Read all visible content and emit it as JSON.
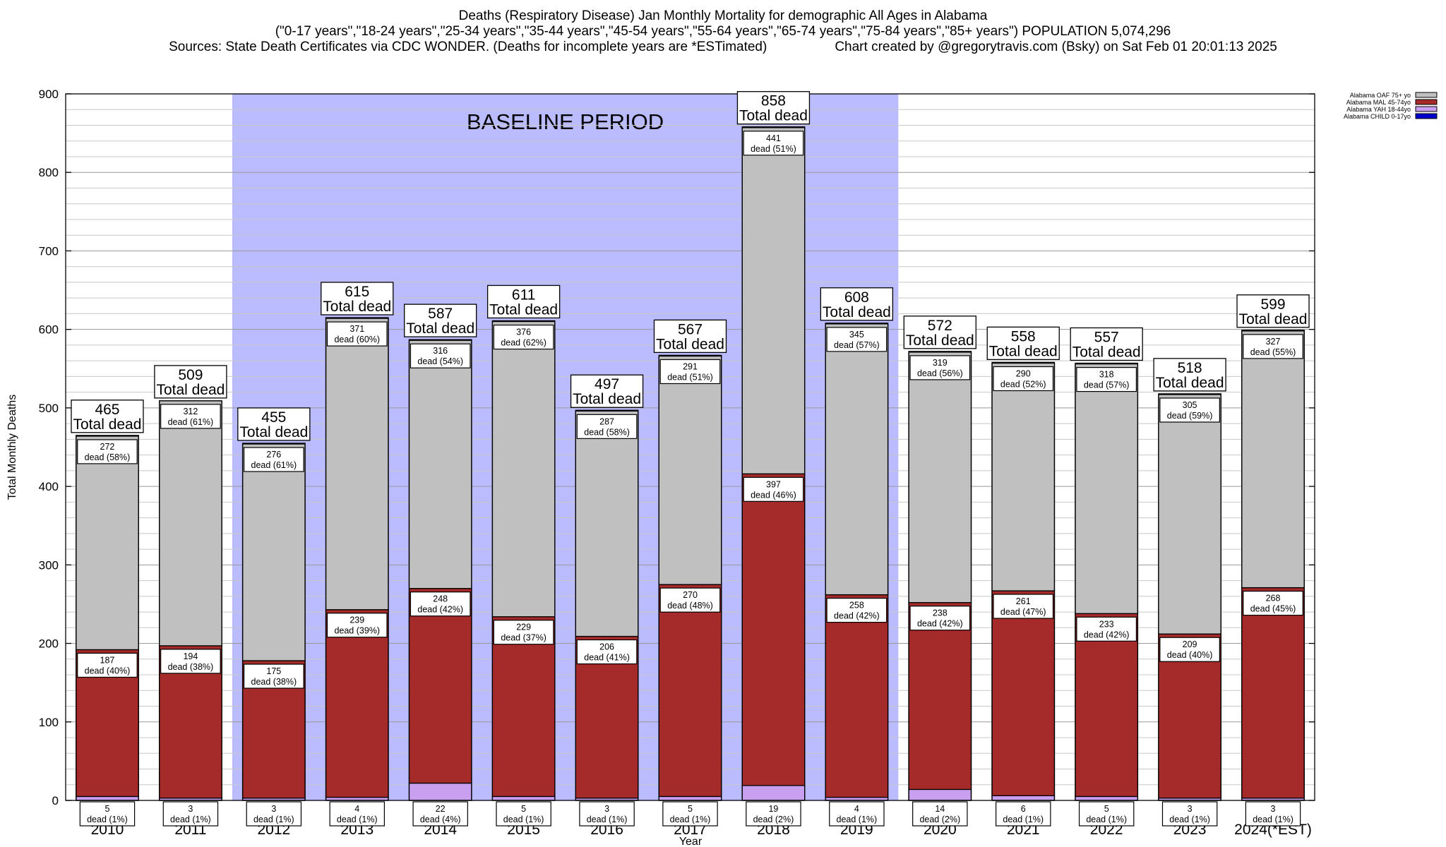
{
  "title_lines": [
    "Deaths (Respiratory Disease) Jan Monthly Mortality for demographic All Ages in Alabama",
    "(\"0-17 years\",\"18-24 years\",\"25-34 years\",\"35-44 years\",\"45-54 years\",\"55-64 years\",\"65-74 years\",\"75-84 years\",\"85+ years\") POPULATION 5,074,296"
  ],
  "sources_text": "Sources: State Death Certificates via CDC WONDER. (Deaths for incomplete years are *ESTimated)",
  "credit_text": "Chart created by @gregorytravis.com (Bsky) on Sat Feb 01 20:01:13 2025",
  "baseline_label": "BASELINE PERIOD",
  "colors": {
    "baseline_band": "#bbbbff",
    "oaf": "#c0c0c0",
    "mal": "#a52a2a",
    "yah": "#c9a0f0",
    "child": "#0000cc"
  },
  "chart_data": {
    "type": "bar",
    "stacked": true,
    "xlabel": "Year",
    "ylabel": "Total Monthly Deaths",
    "ylim": [
      0,
      900
    ],
    "yticks": [
      0,
      100,
      200,
      300,
      400,
      500,
      600,
      700,
      800,
      900
    ],
    "grid": true,
    "legend_position": "top-right",
    "categories": [
      "2010",
      "2011",
      "2012",
      "2013",
      "2014",
      "2015",
      "2016",
      "2017",
      "2018",
      "2019",
      "2020",
      "2021",
      "2022",
      "2023",
      "2024(*EST)"
    ],
    "baseline_period": [
      "2012",
      "2019"
    ],
    "series": [
      {
        "name": "Alabama CHILD 0-17yo",
        "key": "child",
        "values": [
          0,
          0,
          0,
          0,
          0,
          0,
          0,
          0,
          0,
          0,
          0,
          0,
          0,
          0,
          0
        ]
      },
      {
        "name": "Alabama YAH 18-44yo",
        "key": "yah",
        "values": [
          5,
          3,
          3,
          4,
          22,
          5,
          3,
          5,
          19,
          4,
          14,
          6,
          5,
          3,
          3
        ],
        "labels": [
          "dead (1%)",
          "dead (1%)",
          "dead (1%)",
          "dead (1%)",
          "dead (4%)",
          "dead (1%)",
          "dead (1%)",
          "dead (1%)",
          "dead (2%)",
          "dead (1%)",
          "dead (2%)",
          "dead (1%)",
          "dead (1%)",
          "dead (1%)",
          "dead (1%)"
        ]
      },
      {
        "name": "Alabama MAL 45-74yo",
        "key": "mal",
        "values": [
          187,
          194,
          175,
          239,
          248,
          229,
          206,
          270,
          397,
          258,
          238,
          261,
          233,
          209,
          268
        ],
        "labels": [
          "dead (40%)",
          "dead (38%)",
          "dead (38%)",
          "dead (39%)",
          "dead (42%)",
          "dead (37%)",
          "dead (41%)",
          "dead (48%)",
          "dead (46%)",
          "dead (42%)",
          "dead (42%)",
          "dead (47%)",
          "dead (42%)",
          "dead (40%)",
          "dead (45%)"
        ]
      },
      {
        "name": "Alabama OAF 75+ yo",
        "key": "oaf",
        "values": [
          272,
          312,
          276,
          371,
          316,
          376,
          287,
          291,
          441,
          345,
          319,
          290,
          318,
          305,
          327
        ],
        "labels": [
          "dead (58%)",
          "dead (61%)",
          "dead (61%)",
          "dead (60%)",
          "dead (54%)",
          "dead (62%)",
          "dead (58%)",
          "dead (51%)",
          "dead (51%)",
          "dead (57%)",
          "dead (56%)",
          "dead (52%)",
          "dead (57%)",
          "dead (59%)",
          "dead (55%)"
        ]
      }
    ],
    "totals": [
      465,
      509,
      455,
      615,
      587,
      611,
      497,
      567,
      858,
      608,
      572,
      558,
      557,
      518,
      599
    ],
    "total_label": "Total dead"
  }
}
